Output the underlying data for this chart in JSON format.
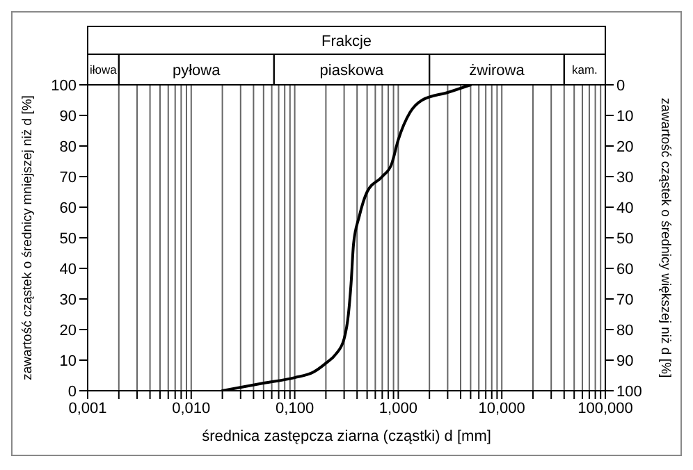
{
  "chart_data": {
    "type": "line",
    "title": "Frakcje",
    "xlabel": "średnica zastępcza ziarna (cząstki) d [mm]",
    "ylabel": "zawartość cząstek o średnicy mniejszej niż d [%]",
    "y2label": "zawartość cząstek o średnicy większej niż d [%]",
    "x": [
      0.02,
      0.05,
      0.1,
      0.15,
      0.2,
      0.25,
      0.3,
      0.33,
      0.35,
      0.37,
      0.42,
      0.5,
      0.7,
      0.86,
      1.0,
      1.3,
      1.7,
      3,
      5
    ],
    "series": [
      {
        "color": "#000000",
        "values": [
          0,
          2.5,
          4.3,
          6,
          9,
          12,
          17,
          25,
          35,
          48,
          57,
          65,
          70,
          74,
          82,
          91,
          95,
          97.5,
          100
        ]
      }
    ],
    "log": "x",
    "xlim": [
      0.001,
      100
    ],
    "xticks": [
      {
        "value": 0.001,
        "label": "0,001"
      },
      {
        "value": 0.002,
        "label": null
      },
      {
        "value": 0.003,
        "label": null
      },
      {
        "value": 0.004,
        "label": null
      },
      {
        "value": 0.005,
        "label": null
      },
      {
        "value": 0.006,
        "label": null
      },
      {
        "value": 0.007,
        "label": null
      },
      {
        "value": 0.008,
        "label": null
      },
      {
        "value": 0.009,
        "label": null
      },
      {
        "value": 0.01,
        "label": "0,010"
      },
      {
        "value": 0.02,
        "label": null
      },
      {
        "value": 0.03,
        "label": null
      },
      {
        "value": 0.04,
        "label": null
      },
      {
        "value": 0.05,
        "label": null
      },
      {
        "value": 0.06,
        "label": null
      },
      {
        "value": 0.07,
        "label": null
      },
      {
        "value": 0.08,
        "label": null
      },
      {
        "value": 0.09,
        "label": null
      },
      {
        "value": 0.1,
        "label": "0,100"
      },
      {
        "value": 0.2,
        "label": null
      },
      {
        "value": 0.3,
        "label": null
      },
      {
        "value": 0.4,
        "label": null
      },
      {
        "value": 0.5,
        "label": null
      },
      {
        "value": 0.6,
        "label": null
      },
      {
        "value": 0.7,
        "label": null
      },
      {
        "value": 0.8,
        "label": null
      },
      {
        "value": 0.9,
        "label": null
      },
      {
        "value": 1,
        "label": "1,000"
      },
      {
        "value": 2,
        "label": null
      },
      {
        "value": 3,
        "label": null
      },
      {
        "value": 4,
        "label": null
      },
      {
        "value": 5,
        "label": null
      },
      {
        "value": 6,
        "label": null
      },
      {
        "value": 7,
        "label": null
      },
      {
        "value": 8,
        "label": null
      },
      {
        "value": 9,
        "label": null
      },
      {
        "value": 10,
        "label": "10,000"
      },
      {
        "value": 20,
        "label": null
      },
      {
        "value": 30,
        "label": null
      },
      {
        "value": 40,
        "label": null
      },
      {
        "value": 50,
        "label": null
      },
      {
        "value": 60,
        "label": null
      },
      {
        "value": 70,
        "label": null
      },
      {
        "value": 80,
        "label": null
      },
      {
        "value": 90,
        "label": null
      },
      {
        "value": 100,
        "label": "100,000"
      }
    ],
    "ylim": [
      0,
      100
    ],
    "yticks": [
      0,
      10,
      20,
      30,
      40,
      50,
      60,
      70,
      80,
      90,
      100
    ],
    "y2lim": [
      100,
      0
    ],
    "y2ticks": [
      0,
      10,
      20,
      30,
      40,
      50,
      60,
      70,
      80,
      90,
      100
    ],
    "bands": [
      {
        "axis": "x",
        "from": 0.001,
        "to": 0.002,
        "label": "iłowa"
      },
      {
        "axis": "x",
        "from": 0.002,
        "to": 0.063,
        "label": "pyłowa"
      },
      {
        "axis": "x",
        "from": 0.063,
        "to": 2,
        "label": "piaskowa"
      },
      {
        "axis": "x",
        "from": 2,
        "to": 40,
        "label": "żwirowa"
      },
      {
        "axis": "x",
        "from": 40,
        "to": 100,
        "label": "kam."
      }
    ],
    "grid": true,
    "marker": "none",
    "line_style": "solid"
  }
}
